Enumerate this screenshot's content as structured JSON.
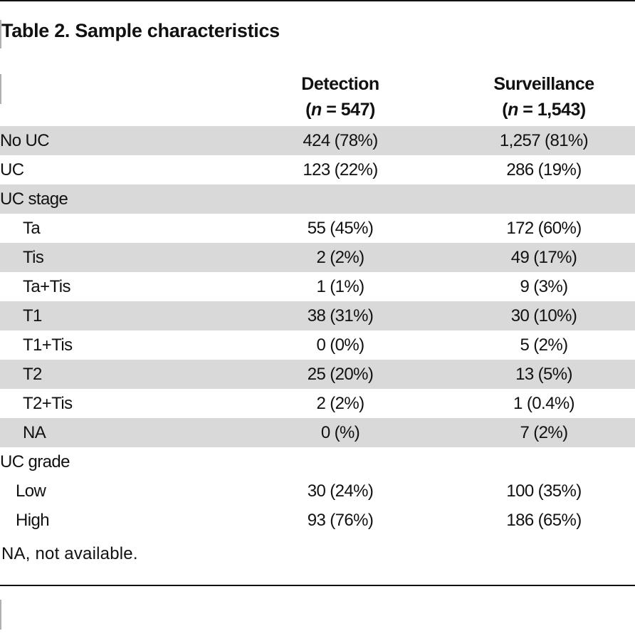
{
  "title": "Table 2. Sample characteristics",
  "columns": {
    "detection": {
      "name": "Detection",
      "n_label": "n",
      "n_value": "547"
    },
    "surveillance": {
      "name": "Surveillance",
      "n_label": "n",
      "n_value": "1,543"
    }
  },
  "rows": [
    {
      "label": "No UC",
      "indent": 0,
      "shaded": true,
      "detection": "424 (78%)",
      "surveillance": "1,257 (81%)"
    },
    {
      "label": "UC",
      "indent": 0,
      "shaded": false,
      "detection": "123 (22%)",
      "surveillance": "286 (19%)"
    },
    {
      "label": "UC stage",
      "indent": 0,
      "shaded": true,
      "detection": "",
      "surveillance": ""
    },
    {
      "label": "Ta",
      "indent": 1,
      "shaded": false,
      "detection": "55 (45%)",
      "surveillance": "172 (60%)"
    },
    {
      "label": "Tis",
      "indent": 1,
      "shaded": true,
      "detection": "2 (2%)",
      "surveillance": "49 (17%)"
    },
    {
      "label": "Ta+Tis",
      "indent": 1,
      "shaded": false,
      "detection": "1 (1%)",
      "surveillance": "9 (3%)"
    },
    {
      "label": "T1",
      "indent": 1,
      "shaded": true,
      "detection": "38 (31%)",
      "surveillance": "30 (10%)"
    },
    {
      "label": "T1+Tis",
      "indent": 1,
      "shaded": false,
      "detection": "0 (0%)",
      "surveillance": "5 (2%)"
    },
    {
      "label": "T2",
      "indent": 1,
      "shaded": true,
      "detection": "25 (20%)",
      "surveillance": "13 (5%)"
    },
    {
      "label": "T2+Tis",
      "indent": 1,
      "shaded": false,
      "detection": "2 (2%)",
      "surveillance": "1 (0.4%)"
    },
    {
      "label": "NA",
      "indent": 1,
      "shaded": true,
      "detection": "0 (%)",
      "surveillance": "7 (2%)"
    },
    {
      "label": "UC grade",
      "indent": 0,
      "shaded": false,
      "detection": "",
      "surveillance": ""
    },
    {
      "label": "Low",
      "indent": 2,
      "shaded": false,
      "detection": "30 (24%)",
      "surveillance": "100 (35%)"
    },
    {
      "label": "High",
      "indent": 2,
      "shaded": false,
      "detection": "93 (76%)",
      "surveillance": "186 (65%)"
    }
  ],
  "footnote": "NA, not available.",
  "colors": {
    "shade": "#d9d9d9",
    "rule": "#111111"
  }
}
